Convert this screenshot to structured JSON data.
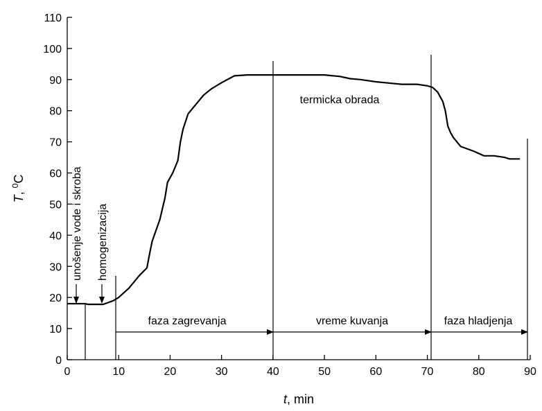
{
  "chart_data": {
    "type": "line",
    "x_label": [
      "t",
      ", min"
    ],
    "y_label": [
      "T",
      ", ",
      "0",
      "C"
    ],
    "x": [
      0,
      3.5,
      4,
      7,
      9,
      10,
      11,
      12,
      13,
      14,
      15.5,
      16,
      16.5,
      18,
      19,
      19.5,
      20.5,
      21.5,
      22,
      22.5,
      23.5,
      25,
      26.5,
      28,
      30,
      32.5,
      35,
      40,
      45,
      50,
      53,
      55,
      57,
      60,
      63,
      65,
      68,
      70,
      71,
      72,
      73,
      73.5,
      74,
      74.5,
      75,
      76.5,
      79,
      81,
      83,
      85,
      86,
      88
    ],
    "values": [
      18,
      18,
      17.8,
      17.8,
      19,
      20,
      21.5,
      23,
      25,
      27,
      29.5,
      34,
      38,
      45,
      52,
      57,
      60,
      64,
      70,
      74,
      79,
      82,
      85,
      87,
      89,
      91.2,
      91.5,
      91.5,
      91.5,
      91.5,
      91,
      90.3,
      90,
      89.3,
      88.8,
      88.5,
      88.5,
      88,
      87.5,
      86,
      83,
      80,
      75,
      73,
      71.5,
      68.5,
      67,
      65.5,
      65.5,
      65,
      64.5,
      64.5
    ],
    "color": "#000000",
    "xlim": [
      0,
      90
    ],
    "xticks": [
      0,
      10,
      20,
      30,
      40,
      50,
      60,
      70,
      80,
      90
    ],
    "ylim": [
      0,
      110
    ],
    "yticks": [
      0,
      10,
      20,
      30,
      40,
      50,
      60,
      70,
      80,
      90,
      100,
      110
    ],
    "annotations": [
      "unošenje vode i skroba",
      "homogenizacija",
      "faza zagrevanja",
      "vreme kuvanja",
      "faza hladjenja",
      "termicka obrada"
    ]
  }
}
